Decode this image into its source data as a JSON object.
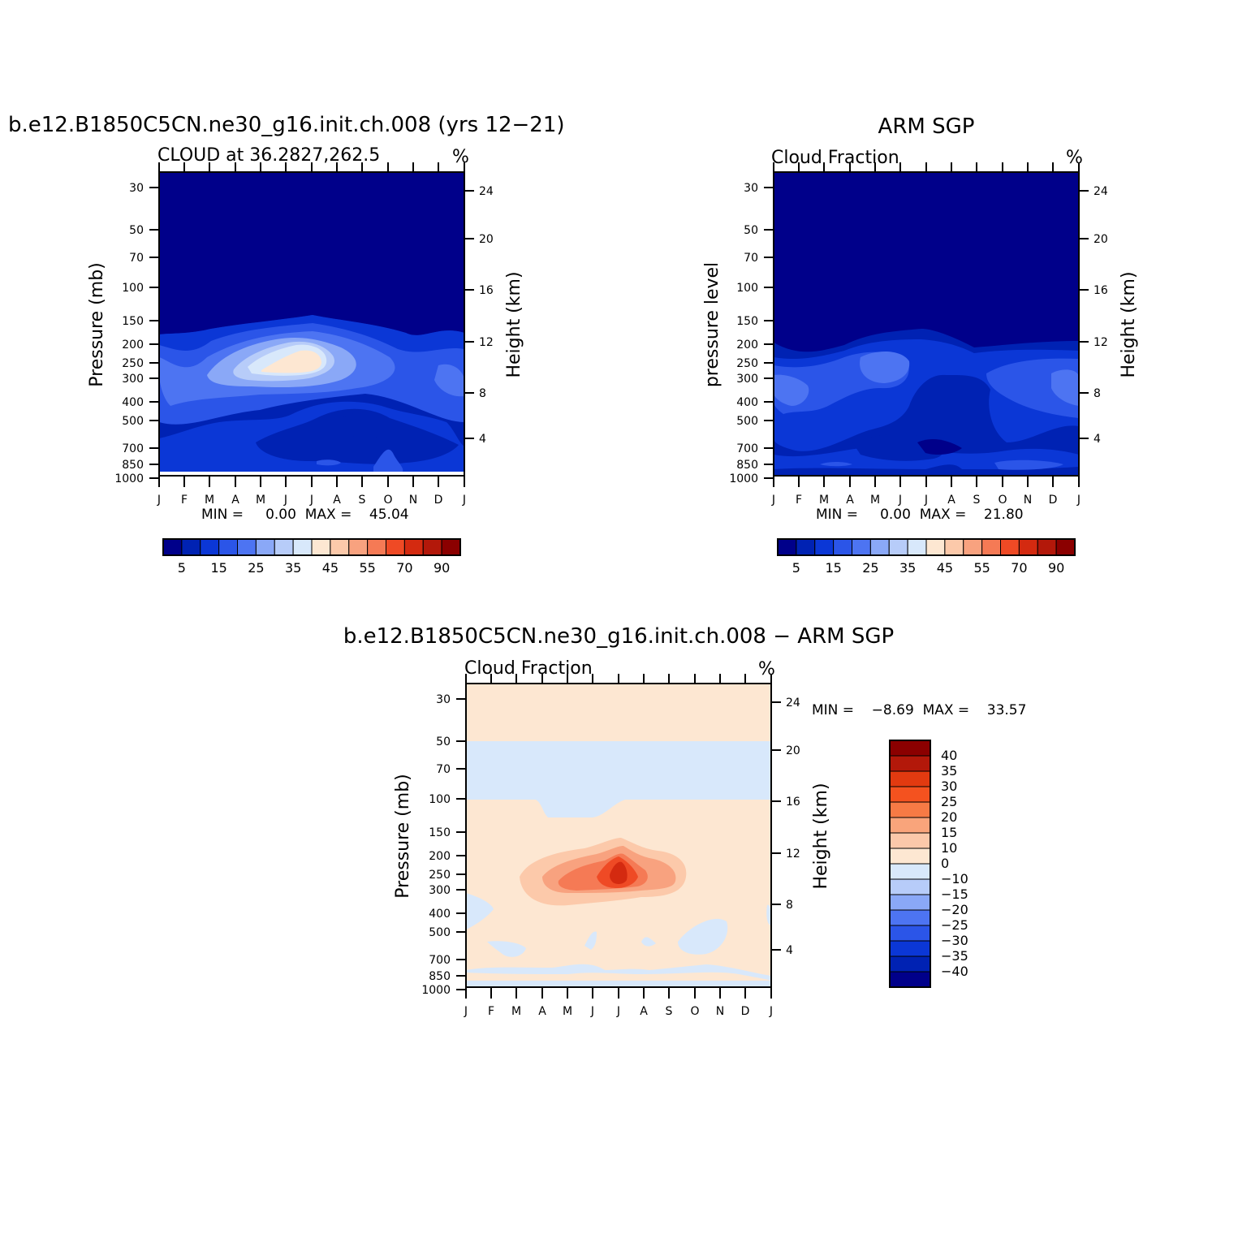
{
  "panels": {
    "p1": {
      "title": "b.e12.B1850C5CN.ne30_g16.init.ch.008 (yrs 12−21)",
      "subtitle": "CLOUD at 36.2827,262.5",
      "units": "%",
      "ylabel_left": "Pressure (mb)",
      "ylabel_right": "Height (km)",
      "minmax": "MIN =     0.00  MAX =    45.04"
    },
    "p2": {
      "title": "ARM SGP",
      "subtitle": "Cloud Fraction",
      "units": "%",
      "ylabel_left": "pressure level",
      "ylabel_right": "Height (km)",
      "minmax": "MIN =     0.00  MAX =    21.80"
    },
    "p3": {
      "title": "b.e12.B1850C5CN.ne30_g16.init.ch.008 − ARM SGP",
      "subtitle": "Cloud Fraction",
      "units": "%",
      "ylabel_left": "Pressure (mb)",
      "ylabel_right": "Height (km)",
      "minmax": "MIN =    −8.69  MAX =    33.57"
    }
  },
  "colorbar_main": {
    "colors": [
      "#00008a",
      "#0022b3",
      "#0b37d6",
      "#2b55e8",
      "#4d74f2",
      "#8aa8f7",
      "#b7ccf9",
      "#d8e8fb",
      "#fde7d2",
      "#fcc9aa",
      "#f8a27f",
      "#f57a55",
      "#ef4a25",
      "#d42a10",
      "#b3180a",
      "#8b0000"
    ],
    "labels": [
      "5",
      "15",
      "25",
      "35",
      "45",
      "55",
      "70",
      "90"
    ]
  },
  "colorbar_diff": {
    "colors": [
      "#8b0000",
      "#b3180a",
      "#e23a10",
      "#f4521f",
      "#f77a45",
      "#f9a47b",
      "#fbc8aa",
      "#fde7d2",
      "#d8e8fb",
      "#b7ccf9",
      "#8aa8f7",
      "#4d74f2",
      "#2b55e8",
      "#0b37d6",
      "#0022b3",
      "#00008a"
    ],
    "labels": [
      "40",
      "35",
      "30",
      "25",
      "20",
      "15",
      "10",
      "0",
      "−10",
      "−15",
      "−20",
      "−25",
      "−30",
      "−35",
      "−40"
    ]
  },
  "chart_data": [
    {
      "type": "heatmap",
      "title": "b.e12.B1850C5CN.ne30_g16.init.ch.008 (yrs 12−21)",
      "subtitle": "CLOUD at 36.2827,262.5",
      "x_categories": [
        "J",
        "F",
        "M",
        "A",
        "M",
        "J",
        "J",
        "A",
        "S",
        "O",
        "N",
        "D",
        "J"
      ],
      "y_left_ticks": [
        30,
        50,
        70,
        100,
        150,
        200,
        250,
        300,
        400,
        500,
        700,
        850,
        1000
      ],
      "y_right_ticks": [
        24,
        20,
        16,
        12,
        8,
        4
      ],
      "xlabel": "",
      "ylabel": "Pressure (mb)",
      "ylabel_right": "Height (km)",
      "units": "%",
      "min": 0.0,
      "max": 45.04
    },
    {
      "type": "heatmap",
      "title": "ARM SGP",
      "subtitle": "Cloud Fraction",
      "x_categories": [
        "J",
        "F",
        "M",
        "A",
        "M",
        "J",
        "J",
        "A",
        "S",
        "O",
        "N",
        "D",
        "J"
      ],
      "y_left_ticks": [
        30,
        50,
        70,
        100,
        150,
        200,
        250,
        300,
        400,
        500,
        700,
        850,
        1000
      ],
      "y_right_ticks": [
        24,
        20,
        16,
        12,
        8,
        4
      ],
      "xlabel": "",
      "ylabel": "pressure level",
      "ylabel_right": "Height (km)",
      "units": "%",
      "min": 0.0,
      "max": 21.8
    },
    {
      "type": "heatmap",
      "title": "b.e12.B1850C5CN.ne30_g16.init.ch.008 − ARM SGP",
      "subtitle": "Cloud Fraction",
      "x_categories": [
        "J",
        "F",
        "M",
        "A",
        "M",
        "J",
        "J",
        "A",
        "S",
        "O",
        "N",
        "D",
        "J"
      ],
      "y_left_ticks": [
        30,
        50,
        70,
        100,
        150,
        200,
        250,
        300,
        400,
        500,
        700,
        850,
        1000
      ],
      "y_right_ticks": [
        24,
        20,
        16,
        12,
        8,
        4
      ],
      "xlabel": "",
      "ylabel": "Pressure (mb)",
      "ylabel_right": "Height (km)",
      "units": "%",
      "min": -8.69,
      "max": 33.57
    }
  ]
}
